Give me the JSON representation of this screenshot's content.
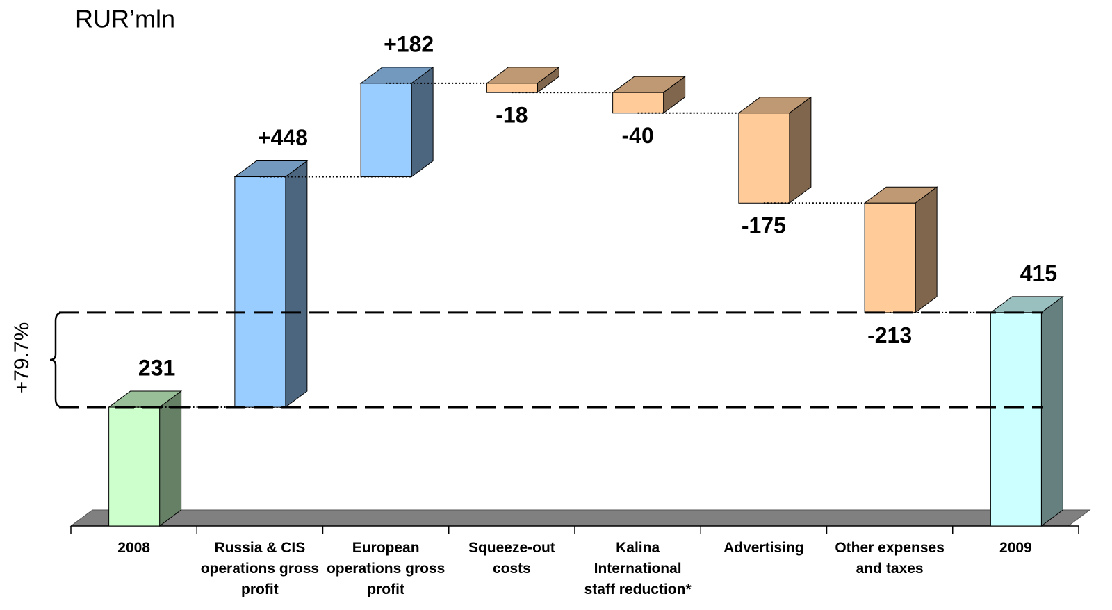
{
  "chart_data": {
    "type": "waterfall",
    "title": "RUR’mln",
    "annotation": "+79.7%",
    "categories": [
      "2008",
      "Russia & CIS operations gross profit",
      "European operations gross profit",
      "Squeeze-out costs",
      "Kalina International staff reduction*",
      "Advertising",
      "Other expenses and taxes",
      "2009"
    ],
    "values": [
      231,
      448,
      182,
      -18,
      -40,
      -175,
      -213,
      415
    ],
    "value_labels": [
      "231",
      "+448",
      "+182",
      "-18",
      "-40",
      "-175",
      "-213",
      "415"
    ],
    "colors": [
      "#ccffcc",
      "#99ccff",
      "#99ccff",
      "#ffcc99",
      "#ffcc99",
      "#ffcc99",
      "#ffcc99",
      "#ccffff"
    ],
    "ylim": [
      0,
      1000
    ]
  }
}
